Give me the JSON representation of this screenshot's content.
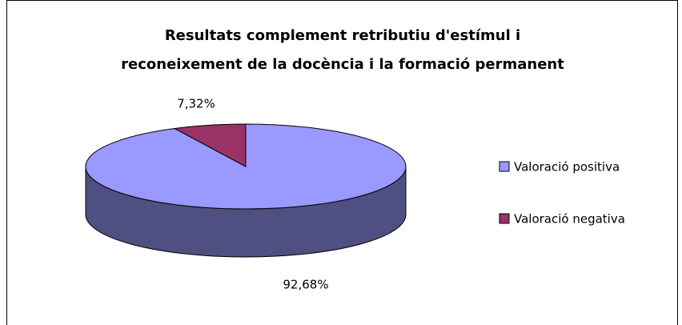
{
  "chart_data": {
    "type": "pie3d",
    "title": [
      "Resultats complement retributiu d'estímul i",
      "reconeixement de la docència i la formació permanent"
    ],
    "categories": [
      "Valoració positiva",
      "Valoració negativa"
    ],
    "values": [
      92.68,
      7.32
    ],
    "value_labels": [
      "92,68%",
      "7,32%"
    ],
    "colors": [
      "#9999ff",
      "#993366"
    ],
    "side_colors": [
      "#4f4f82",
      "#5e1f3f"
    ],
    "legend": "right"
  }
}
